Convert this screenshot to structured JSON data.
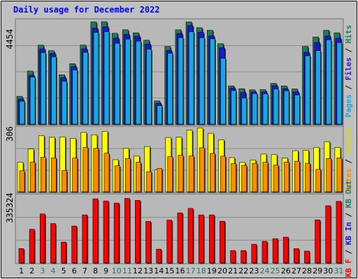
{
  "title": "Daily usage for December 2022",
  "colors": {
    "background": "#c0c0c0",
    "panel": "#b8b8b8",
    "grid": "#8a8a8a",
    "hits": "#1f7a5c",
    "files": "#1a1acc",
    "pages": "#19a7e3",
    "visits": "#ffff00",
    "sites": "#ff8c00",
    "kbin": "#1a1acc",
    "kbout": "#1f7a5c",
    "kbf": "#ff0000",
    "weekend_day": "#1f7a5c",
    "weekday": "#000000"
  },
  "chart_data": [
    {
      "type": "bar",
      "name": "hits_files_pages",
      "ymax_label": "4454",
      "ylim": [
        0,
        4454
      ],
      "legend": [
        "Pages",
        "Files",
        "Hits"
      ],
      "categories": [
        "1",
        "2",
        "3",
        "4",
        "5",
        "6",
        "7",
        "8",
        "9",
        "10",
        "11",
        "12",
        "13",
        "14",
        "15",
        "16",
        "17",
        "18",
        "19",
        "20",
        "21",
        "22",
        "23",
        "24",
        "25",
        "26",
        "27",
        "28",
        "29",
        "30",
        "31"
      ],
      "series": [
        {
          "name": "Hits",
          "values": [
            1200,
            2290,
            3410,
            3170,
            2130,
            2610,
            3410,
            4410,
            4420,
            3920,
            4070,
            3940,
            3620,
            1000,
            3350,
            4070,
            4410,
            4160,
            4050,
            3470,
            1650,
            1530,
            1480,
            1490,
            1760,
            1650,
            1520,
            3350,
            3760,
            4050,
            3940
          ]
        },
        {
          "name": "Files",
          "values": [
            1080,
            2110,
            3250,
            3050,
            2000,
            2480,
            3250,
            4140,
            4200,
            3710,
            3870,
            3790,
            3450,
            900,
            3180,
            3910,
            4250,
            3970,
            3810,
            3290,
            1560,
            1370,
            1390,
            1390,
            1660,
            1530,
            1390,
            3100,
            3520,
            3800,
            3710
          ]
        },
        {
          "name": "Pages",
          "values": [
            990,
            2030,
            3090,
            2910,
            1850,
            2340,
            3100,
            3960,
            3990,
            3490,
            3670,
            3580,
            3230,
            800,
            3060,
            3730,
            3990,
            3730,
            3680,
            2840,
            1450,
            1130,
            1320,
            1310,
            1520,
            1440,
            1260,
            2950,
            3170,
            3640,
            3520
          ]
        }
      ]
    },
    {
      "type": "bar",
      "name": "visits_sites",
      "ymax_label": "306",
      "ylim": [
        0,
        306
      ],
      "legend": [
        "Sites",
        "Visits"
      ],
      "categories": [
        "1",
        "2",
        "3",
        "4",
        "5",
        "6",
        "7",
        "8",
        "9",
        "10",
        "11",
        "12",
        "13",
        "14",
        "15",
        "16",
        "17",
        "18",
        "19",
        "20",
        "21",
        "22",
        "23",
        "24",
        "25",
        "26",
        "27",
        "28",
        "29",
        "30",
        "31"
      ],
      "series": [
        {
          "name": "Visits",
          "values": [
            141,
            204,
            268,
            260,
            262,
            255,
            283,
            272,
            288,
            153,
            207,
            170,
            216,
            106,
            259,
            260,
            294,
            304,
            279,
            248,
            163,
            140,
            152,
            180,
            178,
            161,
            196,
            198,
            212,
            239,
            211
          ]
        },
        {
          "name": "Sites",
          "values": [
            100,
            141,
            165,
            162,
            101,
            161,
            212,
            207,
            184,
            124,
            159,
            141,
            96,
            111,
            168,
            174,
            171,
            210,
            183,
            170,
            135,
            126,
            136,
            141,
            127,
            142,
            146,
            136,
            107,
            159,
            162
          ]
        }
      ]
    },
    {
      "type": "bar",
      "name": "kbytes",
      "ymax_label": "335324",
      "ylim": [
        0,
        335324
      ],
      "legend": [
        "KB F",
        "KB In",
        "KB Out"
      ],
      "categories": [
        "1",
        "2",
        "3",
        "4",
        "5",
        "6",
        "7",
        "8",
        "9",
        "10",
        "11",
        "12",
        "13",
        "14",
        "15",
        "16",
        "17",
        "18",
        "19",
        "20",
        "21",
        "22",
        "23",
        "24",
        "25",
        "26",
        "27",
        "28",
        "29",
        "30",
        "31"
      ],
      "series": [
        {
          "name": "KB F",
          "values": [
            75000,
            176000,
            256000,
            206000,
            109000,
            193000,
            251000,
            335000,
            324000,
            313000,
            337000,
            327000,
            217000,
            72000,
            224000,
            262000,
            285000,
            251000,
            251000,
            218000,
            65000,
            65000,
            98000,
            113000,
            127000,
            135000,
            75000,
            62000,
            225000,
            299000,
            322000
          ]
        }
      ]
    }
  ]
}
